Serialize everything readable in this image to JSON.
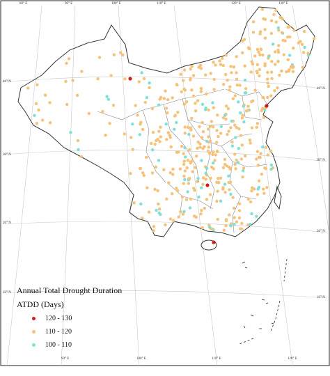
{
  "map": {
    "legend": {
      "title": "Annual Total Drought Duration",
      "unit": "ATDD (Days)",
      "classes": [
        {
          "label": "120 - 130",
          "color": "#cc1f1f"
        },
        {
          "label": "110 - 120",
          "color": "#f6c27a"
        },
        {
          "label": "100 - 110",
          "color": "#7fe0d8"
        }
      ]
    },
    "graticule": {
      "top_labels": [
        "80° E",
        "90° E",
        "100° E",
        "110° E",
        "120° E",
        "130° E"
      ],
      "bottom_labels": [
        "90° E",
        "100° E",
        "110° E",
        "120° E"
      ],
      "left_labels": [
        "40° N",
        "30° N",
        "20° N",
        "10° N"
      ],
      "right_labels": [
        "40° N",
        "30° N",
        "20° N",
        "10° N"
      ]
    }
  }
}
